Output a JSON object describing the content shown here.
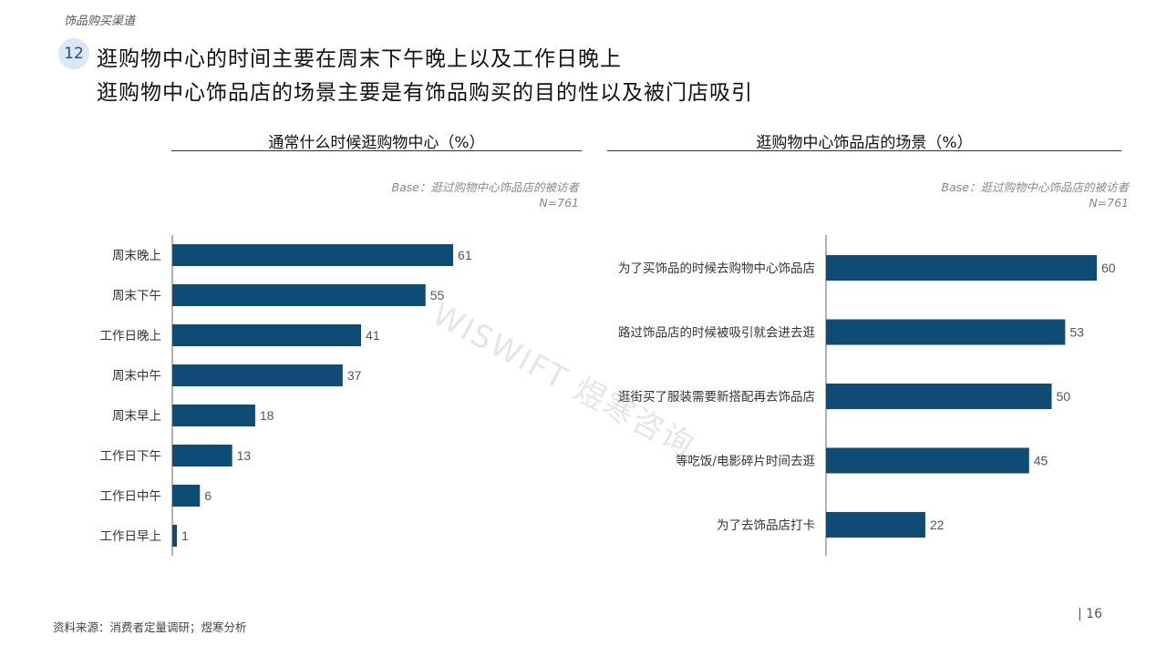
{
  "header": {
    "section_tag": "饰品购买渠道",
    "badge_number": "12",
    "headline_line1": "逛购物中心的时间主要在周末下午晚上以及工作日晚上",
    "headline_line2": "逛购物中心饰品店的场景主要是有饰品购买的目的性以及被门店吸引"
  },
  "left_panel": {
    "title": "通常什么时候逛购物中心（%）",
    "base_line1": "Base：逛过购物中心饰品店的被访者",
    "base_line2": "N=761"
  },
  "right_panel": {
    "title": "逛购物中心饰品店的场景（%）",
    "base_line1": "Base：逛过购物中心饰品店的被访者",
    "base_line2": "N=761"
  },
  "watermark": "WISWIFT 煜寒咨询",
  "footer": {
    "source": "资料来源：消费者定量调研；煜寒分析",
    "page_number": "| 16"
  },
  "colors": {
    "bar": "#0f4c75",
    "axis": "#666666",
    "label": "#333333",
    "value": "#555555"
  },
  "chart_data": [
    {
      "type": "bar",
      "orientation": "horizontal",
      "title": "通常什么时候逛购物中心（%）",
      "categories": [
        "周末晚上",
        "周末下午",
        "工作日晚上",
        "周末中午",
        "周末早上",
        "工作日下午",
        "工作日中午",
        "工作日早上"
      ],
      "values": [
        61,
        55,
        41,
        37,
        18,
        13,
        6,
        1
      ],
      "unit": "%",
      "xlim": [
        0,
        100
      ],
      "grid": false,
      "legend": "none"
    },
    {
      "type": "bar",
      "orientation": "horizontal",
      "title": "逛购物中心饰品店的场景（%）",
      "categories": [
        "为了买饰品的时候去购物中心饰品店",
        "路过饰品店的时候被吸引就会进去逛",
        "逛街买了服装需要新搭配再去饰品店",
        "等吃饭/电影碎片时间去逛",
        "为了去饰品店打卡"
      ],
      "values": [
        60,
        53,
        50,
        45,
        22
      ],
      "unit": "%",
      "xlim": [
        0,
        100
      ],
      "grid": false,
      "legend": "none"
    }
  ]
}
